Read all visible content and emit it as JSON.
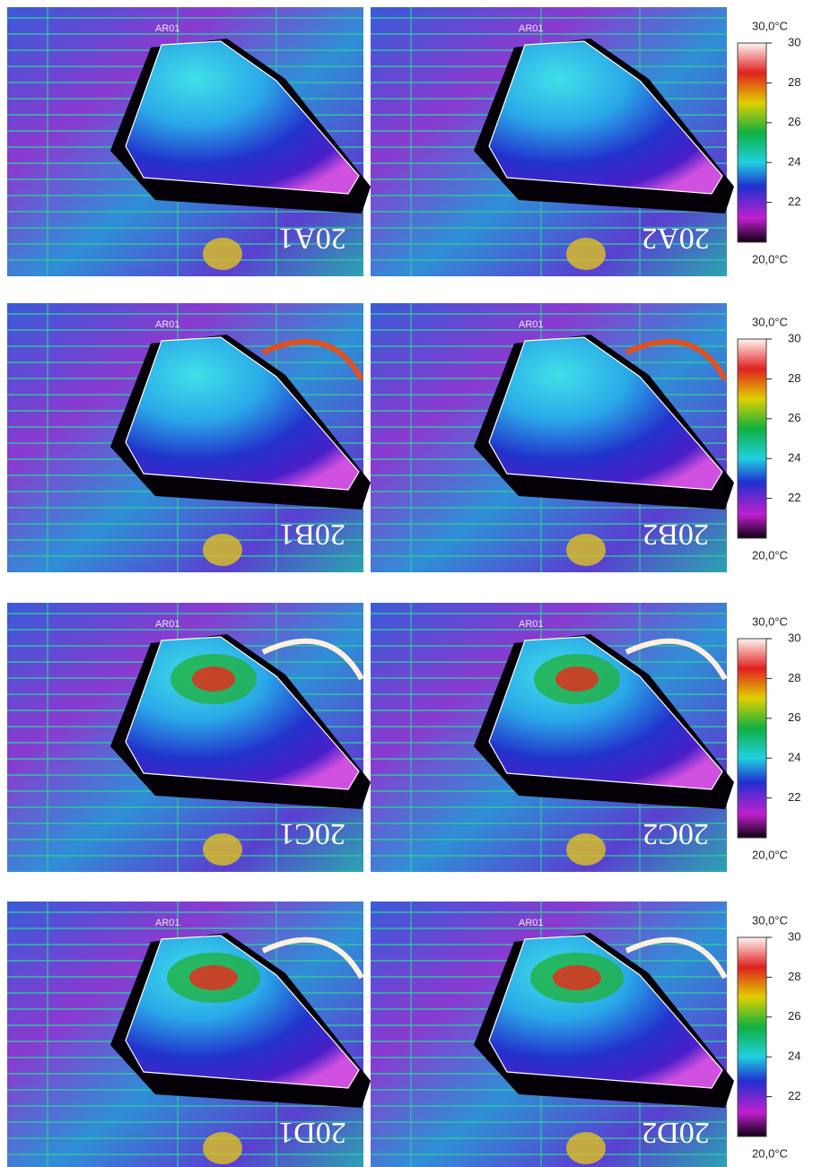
{
  "rows": [
    {
      "panels": [
        {
          "label": "20A1",
          "region": "AR01"
        },
        {
          "label": "20A2",
          "region": "AR01"
        }
      ],
      "colorbar": {
        "max": {
          "value": 30,
          "label": "30,0°C"
        },
        "min": {
          "value": 20,
          "label": "20,0°C"
        },
        "ticks": [
          30,
          28,
          26,
          24,
          22
        ]
      }
    },
    {
      "panels": [
        {
          "label": "20B1",
          "region": "AR01"
        },
        {
          "label": "20B2",
          "region": "AR01"
        }
      ],
      "colorbar": {
        "max": {
          "value": 30,
          "label": "30,0°C"
        },
        "min": {
          "value": 20,
          "label": "20,0°C"
        },
        "ticks": [
          30,
          28,
          26,
          24,
          22
        ]
      }
    },
    {
      "panels": [
        {
          "label": "20C1",
          "region": "AR01"
        },
        {
          "label": "20C2",
          "region": "AR01"
        }
      ],
      "colorbar": {
        "max": {
          "value": 30,
          "label": "30,0°C"
        },
        "min": {
          "value": 20,
          "label": "20,0°C"
        },
        "ticks": [
          30,
          28,
          26,
          24,
          22
        ]
      }
    },
    {
      "panels": [
        {
          "label": "20D1",
          "region": "AR01"
        },
        {
          "label": "20D2",
          "region": "AR01"
        }
      ],
      "colorbar": {
        "max": {
          "value": 30,
          "label": "30,0°C"
        },
        "min": {
          "value": 20,
          "label": "20,0°C"
        },
        "ticks": [
          30,
          28,
          26,
          24,
          22
        ]
      }
    }
  ]
}
